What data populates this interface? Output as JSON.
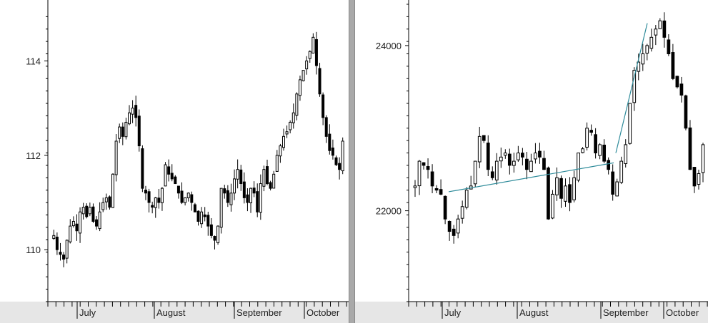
{
  "chart_data": [
    {
      "type": "candlestick",
      "title": "",
      "x_labels": [
        "July",
        "August",
        "September",
        "October"
      ],
      "y_ticks": [
        "110",
        "112",
        "114"
      ],
      "ylim": [
        108.9,
        115.2
      ],
      "grid": false,
      "closes": [
        110.3,
        110.0,
        109.9,
        109.8,
        110.2,
        110.5,
        110.6,
        110.4,
        110.8,
        110.9,
        110.7,
        110.9,
        110.6,
        110.5,
        110.8,
        111.0,
        111.1,
        110.9,
        111.6,
        112.3,
        112.6,
        112.4,
        112.7,
        112.9,
        113.0,
        112.8,
        112.2,
        111.3,
        111.2,
        111.0,
        110.9,
        111.1,
        111.0,
        111.3,
        111.8,
        111.6,
        111.5,
        111.4,
        111.2,
        111.0,
        111.1,
        111.2,
        111.0,
        110.8,
        110.6,
        110.8,
        110.7,
        110.5,
        110.3,
        110.2,
        110.5,
        111.3,
        111.2,
        111.0,
        111.2,
        111.5,
        111.7,
        111.4,
        111.1,
        111.0,
        111.3,
        111.2,
        110.8,
        111.4,
        111.7,
        111.4,
        111.3,
        111.6,
        112.0,
        112.2,
        112.4,
        112.5,
        112.7,
        112.9,
        113.3,
        113.6,
        113.8,
        114.0,
        114.2,
        114.5,
        113.9,
        113.3,
        112.8,
        112.4,
        112.1,
        112.0,
        111.8,
        111.7,
        112.3
      ],
      "line_color": "#000000"
    },
    {
      "type": "candlestick",
      "title": "",
      "x_labels": [
        "July",
        "August",
        "September",
        "October"
      ],
      "y_ticks": [
        "22000",
        "24000"
      ],
      "ylim": [
        20900,
        24500
      ],
      "grid": false,
      "closes": [
        22300,
        22600,
        22550,
        22500,
        22300,
        22250,
        22200,
        21900,
        21750,
        21700,
        21900,
        22050,
        22250,
        22300,
        22600,
        22900,
        22850,
        22500,
        22400,
        22600,
        22650,
        22700,
        22550,
        22600,
        22700,
        22650,
        22500,
        22600,
        22700,
        22650,
        22500,
        21900,
        22200,
        22400,
        22150,
        22300,
        22100,
        22400,
        22700,
        22750,
        23000,
        22950,
        22700,
        22800,
        22600,
        22500,
        22200,
        22350,
        22600,
        22800,
        23300,
        23700,
        23800,
        23900,
        24000,
        24100,
        24200,
        24300,
        24100,
        23900,
        23600,
        23500,
        23400,
        23000,
        22500,
        22300,
        22450,
        22800
      ],
      "trendlines": [
        {
          "from_x": 22280,
          "label": ""
        }
      ],
      "trendline_color": "#2e8b9a",
      "line_color": "#000000"
    }
  ]
}
